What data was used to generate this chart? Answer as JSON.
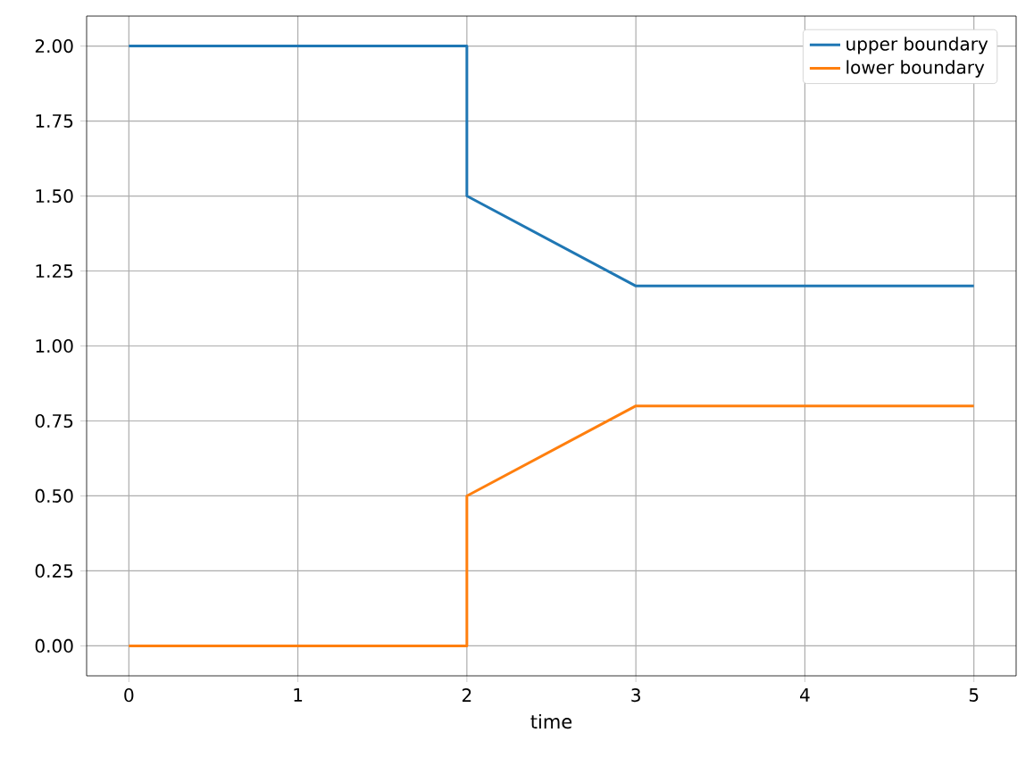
{
  "chart_data": {
    "type": "line",
    "xlabel": "time",
    "series": [
      {
        "name": "upper boundary",
        "color": "#1f77b4",
        "x": [
          0,
          2,
          2,
          3,
          5
        ],
        "values": [
          2,
          2,
          1.5,
          1.2,
          1.2
        ]
      },
      {
        "name": "lower boundary",
        "color": "#ff7f0e",
        "x": [
          0,
          2,
          2,
          3,
          5
        ],
        "values": [
          0,
          0,
          0.5,
          0.8,
          0.8
        ]
      }
    ],
    "xlim": [
      -0.25,
      5.25
    ],
    "ylim": [
      -0.1,
      2.1
    ],
    "xticks": [
      0,
      1,
      2,
      3,
      4,
      5
    ],
    "yticks": [
      {
        "value": 0,
        "label": "0.00"
      },
      {
        "value": 0.25,
        "label": "0.25"
      },
      {
        "value": 0.5,
        "label": "0.50"
      },
      {
        "value": 0.75,
        "label": "0.75"
      },
      {
        "value": 1,
        "label": "1.00"
      },
      {
        "value": 1.25,
        "label": "1.25"
      },
      {
        "value": 1.5,
        "label": "1.50"
      },
      {
        "value": 1.75,
        "label": "1.75"
      },
      {
        "value": 2,
        "label": "2.00"
      }
    ],
    "grid": true,
    "legend": "top right"
  }
}
